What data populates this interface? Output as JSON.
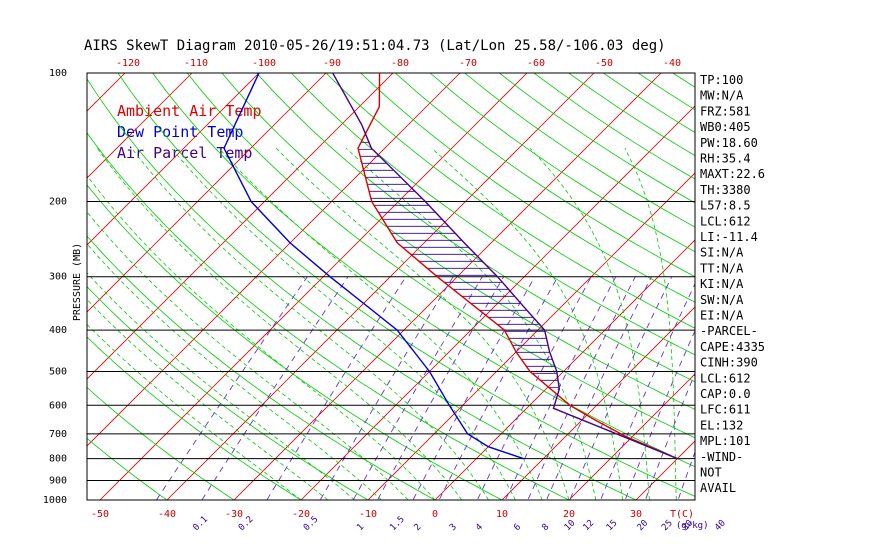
{
  "title": "AIRS SkewT Diagram 2010-05-26/19:51:04.73 (Lat/Lon 25.58/-106.03 deg)",
  "colors": {
    "ambient": "#dd0000",
    "dewpoint": "#0000cc",
    "parcel": "#440088",
    "dry_adiabat": "#00cc00",
    "moist_adiabat": "#00cc00",
    "isotherm": "#dd0000",
    "mixing_ratio": "#6633cc",
    "hatch": "#330099"
  },
  "legend": [
    {
      "label": "Ambient Air Temp",
      "color": "#dd0000"
    },
    {
      "label": "Dew Point Temp",
      "color": "#0000cc"
    },
    {
      "label": "Air Parcel Temp",
      "color": "#440088"
    }
  ],
  "indices": [
    "TP:100",
    "MW:N/A",
    "FRZ:581",
    "WB0:405",
    "PW:18.60",
    "RH:35.4",
    "MAXT:22.6",
    "TH:3380",
    "L57:8.5",
    "LCL:612",
    "LI:-11.4",
    "SI:N/A",
    "TT:N/A",
    "KI:N/A",
    "SW:N/A",
    "EI:N/A",
    "-PARCEL-",
    "CAPE:4335",
    "CINH:390",
    "LCL:612",
    "CAP:0.0",
    "LFC:611",
    "EL:132",
    "MPL:101",
    "-WIND-",
    "NOT",
    "AVAIL"
  ],
  "chart_data": {
    "type": "line",
    "title": "AIRS SkewT Diagram 2010-05-26/19:51:04.73 (Lat/Lon 25.58/-106.03 deg)",
    "ylabel": "PRESSURE (MB)",
    "xlabel_bottom": "T(C)",
    "xlabel_mixing": "(g/kg)",
    "y_scale": "log",
    "ylim": [
      1000,
      100
    ],
    "pressure_ticks": [
      100,
      200,
      300,
      400,
      500,
      600,
      700,
      800,
      900,
      1000
    ],
    "pressure_tick_labels": [
      "100",
      "200",
      "300",
      "400",
      "500",
      "600",
      "700",
      "800",
      "900",
      "1000"
    ],
    "temp_ticks_bottom": [
      -50,
      -40,
      -30,
      -20,
      -10,
      0,
      10,
      20,
      30
    ],
    "temp_ticks_bottom_labels": [
      "-50",
      "-40",
      "-30",
      "-20",
      "-10",
      "0",
      "10",
      "20",
      "30"
    ],
    "temp_ticks_top": [
      -120,
      -110,
      -100,
      -90,
      -80,
      -70,
      -60,
      -50,
      -40
    ],
    "temp_ticks_top_labels": [
      "-120",
      "-110",
      "-100",
      "-90",
      "-80",
      "-70",
      "-60",
      "-50",
      "-40"
    ],
    "mixing_ratio_ticks": [
      "0.1",
      "0.2",
      "0.5",
      "1",
      "1.5",
      "2",
      "3",
      "4",
      "6",
      "8",
      "10",
      "12",
      "15",
      "20",
      "25",
      "30",
      "40"
    ],
    "series": [
      {
        "name": "Ambient Air Temp",
        "points": [
          {
            "p": 800,
            "t": 30
          },
          {
            "p": 710,
            "t": 19
          },
          {
            "p": 650,
            "t": 12
          },
          {
            "p": 600,
            "t": 6
          },
          {
            "p": 500,
            "t": -5
          },
          {
            "p": 450,
            "t": -10
          },
          {
            "p": 400,
            "t": -15
          },
          {
            "p": 300,
            "t": -33
          },
          {
            "p": 250,
            "t": -44
          },
          {
            "p": 200,
            "t": -54
          },
          {
            "p": 150,
            "t": -64
          },
          {
            "p": 120,
            "t": -67
          },
          {
            "p": 100,
            "t": -72
          }
        ]
      },
      {
        "name": "Dew Point Temp",
        "points": [
          {
            "p": 800,
            "t": 7
          },
          {
            "p": 750,
            "t": 0
          },
          {
            "p": 700,
            "t": -5
          },
          {
            "p": 600,
            "t": -12
          },
          {
            "p": 500,
            "t": -20
          },
          {
            "p": 400,
            "t": -31
          },
          {
            "p": 300,
            "t": -49
          },
          {
            "p": 250,
            "t": -60
          },
          {
            "p": 200,
            "t": -72
          },
          {
            "p": 150,
            "t": -84
          },
          {
            "p": 100,
            "t": -90
          }
        ]
      },
      {
        "name": "Air Parcel Temp",
        "points": [
          {
            "p": 800,
            "t": 30
          },
          {
            "p": 610,
            "t": 4
          },
          {
            "p": 550,
            "t": 2
          },
          {
            "p": 500,
            "t": -1
          },
          {
            "p": 450,
            "t": -5
          },
          {
            "p": 400,
            "t": -9
          },
          {
            "p": 350,
            "t": -16
          },
          {
            "p": 300,
            "t": -24
          },
          {
            "p": 250,
            "t": -34
          },
          {
            "p": 200,
            "t": -46
          },
          {
            "p": 150,
            "t": -62
          },
          {
            "p": 132,
            "t": -67
          },
          {
            "p": 100,
            "t": -79
          }
        ]
      }
    ],
    "grid": true
  }
}
